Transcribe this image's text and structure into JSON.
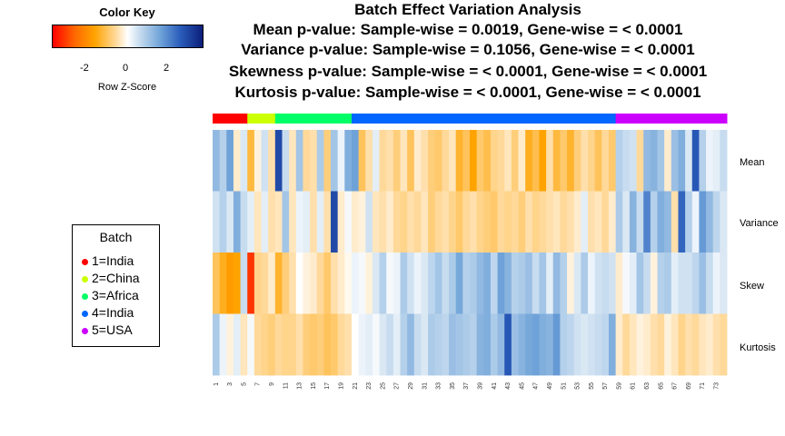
{
  "title_lines": [
    "Batch Effect Variation Analysis",
    "Mean p-value: Sample-wise = 0.0019, Gene-wise = < 0.0001",
    "Variance p-value: Sample-wise = 0.1056, Gene-wise = < 0.0001",
    "Skewness p-value: Sample-wise = < 0.0001, Gene-wise = < 0.0001",
    "Kurtosis p-value: Sample-wise = < 0.0001, Gene-wise = < 0.0001"
  ],
  "color_key": {
    "title": "Color Key",
    "ticks": [
      "-2",
      "0",
      "2"
    ],
    "xlabel": "Row Z-Score"
  },
  "legend": {
    "title": "Batch",
    "items": [
      {
        "label": "1=India",
        "color": "#ff0000"
      },
      {
        "label": "2=China",
        "color": "#ccff00"
      },
      {
        "label": "3=Africa",
        "color": "#00ff66"
      },
      {
        "label": "4=India",
        "color": "#0066ff"
      },
      {
        "label": "5=USA",
        "color": "#cc00ff"
      }
    ]
  },
  "chart_data": {
    "type": "heatmap",
    "rows": [
      "Mean",
      "Variance",
      "Skew",
      "Kurtosis"
    ],
    "x_tick_labels": [
      "1",
      "3",
      "5",
      "7",
      "9",
      "11",
      "13",
      "15",
      "17",
      "19",
      "21",
      "23",
      "25",
      "27",
      "29",
      "31",
      "33",
      "35",
      "37",
      "39",
      "41",
      "43",
      "45",
      "47",
      "49",
      "51",
      "53",
      "55",
      "57",
      "59",
      "61",
      "63",
      "65",
      "67",
      "69",
      "71",
      "73"
    ],
    "n_columns": 74,
    "batch_spans": [
      {
        "batch": "1=India",
        "from": 1,
        "to": 5,
        "color": "#ff0000"
      },
      {
        "batch": "2=China",
        "from": 6,
        "to": 9,
        "color": "#ccff00"
      },
      {
        "batch": "3=Africa",
        "from": 10,
        "to": 20,
        "color": "#00ff66"
      },
      {
        "batch": "4=India",
        "from": 21,
        "to": 58,
        "color": "#0066ff"
      },
      {
        "batch": "5=USA",
        "from": 59,
        "to": 74,
        "color": "#cc00ff"
      }
    ],
    "z_scores": [
      [
        1.2,
        0.8,
        1.6,
        -0.3,
        0.4,
        -1.2,
        -0.2,
        0.5,
        -0.5,
        2.8,
        0.6,
        -0.4,
        1.0,
        -0.6,
        -0.5,
        0.9,
        -0.8,
        1.0,
        0.2,
        1.4,
        1.6,
        -1.0,
        -0.5,
        0.3,
        -0.6,
        -0.5,
        -0.8,
        -0.4,
        -1.0,
        -0.3,
        -0.5,
        -0.8,
        -0.9,
        -0.6,
        -0.4,
        -1.3,
        -1.0,
        -1.6,
        -0.9,
        -1.1,
        -0.7,
        -0.6,
        -0.4,
        -0.8,
        -0.3,
        -1.4,
        -1.1,
        -1.6,
        -0.5,
        -1.2,
        -0.9,
        -1.3,
        -0.8,
        -0.5,
        -0.7,
        -1.0,
        -0.6,
        -0.9,
        0.8,
        0.6,
        0.5,
        -0.6,
        1.2,
        1.3,
        1.0,
        -0.3,
        1.1,
        1.4,
        0.4,
        2.6,
        0.8,
        0.2,
        0.3,
        0.6
      ],
      [
        0.5,
        0.8,
        0.4,
        1.4,
        0.6,
        0.3,
        -0.4,
        0.3,
        -0.5,
        -0.4,
        1.0,
        -0.4,
        0.2,
        0.3,
        -0.5,
        0.3,
        -0.5,
        2.8,
        -0.3,
        0.1,
        -0.3,
        -0.2,
        0.5,
        -0.4,
        -0.5,
        -0.3,
        -0.6,
        -0.7,
        -0.5,
        -0.6,
        -0.4,
        -0.8,
        -0.6,
        -0.5,
        -0.7,
        -0.9,
        -0.6,
        -0.5,
        -0.7,
        -0.8,
        -0.9,
        -0.6,
        -0.7,
        -0.6,
        -0.8,
        -0.5,
        -0.7,
        -0.6,
        -0.5,
        -0.4,
        -0.6,
        -0.5,
        -0.3,
        0.3,
        -0.5,
        -0.4,
        -0.6,
        -0.3,
        0.9,
        0.4,
        1.3,
        0.6,
        2.0,
        0.8,
        1.4,
        1.2,
        -0.5,
        2.4,
        0.8,
        0.2,
        1.7,
        1.2,
        0.7,
        0.4
      ],
      [
        -1.0,
        -1.4,
        -1.7,
        -1.6,
        0.6,
        -3.0,
        -0.7,
        -0.6,
        -0.3,
        -1.3,
        -0.8,
        -0.5,
        0.0,
        -0.2,
        -0.3,
        -0.6,
        -0.9,
        -0.5,
        -0.3,
        -0.1,
        0.2,
        0.1,
        -0.2,
        0.4,
        0.8,
        0.1,
        0.2,
        0.9,
        0.5,
        0.2,
        0.4,
        0.7,
        1.0,
        0.6,
        0.9,
        1.5,
        0.8,
        0.9,
        1.2,
        1.4,
        0.7,
        1.6,
        1.3,
        0.8,
        0.9,
        1.1,
        0.6,
        1.0,
        0.3,
        1.2,
        0.8,
        -0.2,
        0.4,
        0.9,
        0.2,
        0.5,
        0.6,
        0.5,
        -0.3,
        0.1,
        0.3,
        1.0,
        0.6,
        -0.2,
        0.8,
        0.9,
        0.3,
        0.5,
        0.5,
        0.7,
        1.1,
        0.6,
        0.2,
        0.4
      ],
      [
        0.9,
        0.2,
        -0.2,
        0.3,
        -0.4,
        0.1,
        -0.6,
        -0.7,
        -0.8,
        -0.6,
        -0.7,
        -0.7,
        -0.5,
        -0.8,
        -0.9,
        -0.8,
        -1.0,
        -0.9,
        -0.6,
        -0.5,
        0.0,
        0.2,
        0.3,
        0.1,
        0.4,
        0.6,
        0.3,
        0.8,
        1.2,
        0.6,
        0.4,
        0.9,
        0.8,
        0.7,
        1.1,
        1.0,
        0.9,
        0.8,
        1.3,
        1.4,
        0.9,
        1.2,
        2.6,
        1.1,
        1.3,
        1.5,
        1.6,
        1.4,
        1.3,
        1.7,
        0.8,
        0.7,
        0.5,
        0.4,
        0.5,
        0.6,
        0.7,
        1.4,
        -0.3,
        -0.6,
        -0.4,
        -0.2,
        -0.3,
        -0.5,
        -0.6,
        -0.2,
        -0.4,
        -0.7,
        -0.5,
        -0.6,
        -0.4,
        -0.3,
        -0.5,
        -0.6
      ]
    ],
    "zlim": [
      -3.5,
      3.5
    ]
  }
}
